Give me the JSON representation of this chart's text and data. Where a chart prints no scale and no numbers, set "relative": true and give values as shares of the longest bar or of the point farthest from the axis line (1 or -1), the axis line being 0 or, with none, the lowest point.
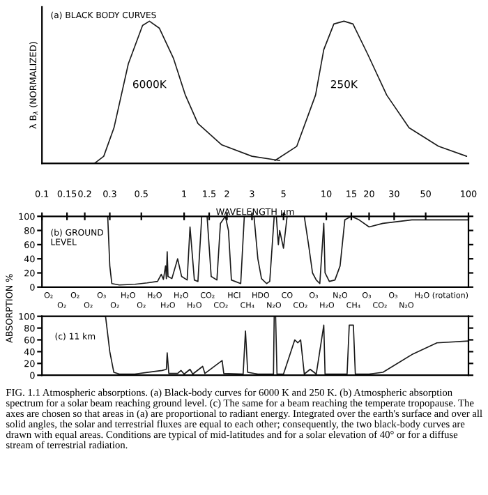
{
  "chart_data": [
    {
      "type": "line",
      "title": "(a) BLACK BODY CURVES",
      "ylabel": "λ B$_{λ}$ (NORMALIZED)",
      "relative": true,
      "log": "x",
      "xlim": [
        0.1,
        100
      ],
      "tick_labels": false,
      "series": [
        {
          "name": "6000K",
          "color": "#1a1a1a",
          "x": [
            0.234,
            0.272,
            0.321,
            0.405,
            0.51,
            0.57,
            0.67,
            0.84,
            1.02,
            1.25,
            1.84,
            3.0,
            4.7
          ],
          "values": [
            0,
            0.05,
            0.25,
            0.7,
            0.97,
            1,
            0.95,
            0.74,
            0.48,
            0.28,
            0.13,
            0.05,
            0.02
          ]
        },
        {
          "name": "250K",
          "color": "#1a1a1a",
          "x": [
            4.35,
            6.2,
            8.4,
            9.6,
            11.3,
            13.3,
            15.4,
            19.5,
            26.6,
            38.2,
            61.5,
            97
          ],
          "values": [
            0.02,
            0.12,
            0.48,
            0.8,
            0.98,
            1,
            0.98,
            0.77,
            0.48,
            0.25,
            0.12,
            0.05
          ]
        }
      ]
    },
    {
      "type": "line",
      "title": "(b) GROUND LEVEL",
      "xlabel": "WAVELENGTH µm",
      "ylabel": "ABSORPTION %",
      "log": "x",
      "xlim": [
        0.1,
        100
      ],
      "ylim": [
        0,
        100
      ],
      "yticks": [
        0,
        20,
        40,
        60,
        80,
        100
      ],
      "xticks": [
        0.1,
        0.15,
        0.2,
        {
          "value": 0.3,
          "label": "0.3"
        },
        0.5,
        1,
        1.5,
        2,
        3,
        5,
        10,
        15,
        20,
        30,
        50,
        100
      ],
      "series": [
        {
          "color": "#1a1a1a",
          "x": [
            0.1,
            0.29,
            0.3,
            0.31,
            0.35,
            0.45,
            0.55,
            0.65,
            0.69,
            0.715,
            0.74,
            0.75,
            0.76,
            0.77,
            0.82,
            0.9,
            0.96,
            1.05,
            1.1,
            1.18,
            1.25,
            1.33,
            1.45,
            1.55,
            1.7,
            1.8,
            1.95,
            2.05,
            2.15,
            2.5,
            2.65,
            2.9,
            3.1,
            3.3,
            3.5,
            3.8,
            4.0,
            4.3,
            4.45,
            4.6,
            4.7,
            5.0,
            5.3,
            6.0,
            7.0,
            7.5,
            8.0,
            8.5,
            9.0,
            9.6,
            9.8,
            10.5,
            11.5,
            12.5,
            13.5,
            15,
            17,
            20,
            25,
            40,
            100
          ],
          "values": [
            100,
            100,
            30,
            5,
            3,
            4,
            6,
            8,
            18,
            11,
            30,
            12,
            50,
            15,
            12,
            40,
            15,
            10,
            85,
            10,
            8,
            100,
            100,
            15,
            10,
            90,
            100,
            80,
            10,
            5,
            100,
            100,
            100,
            40,
            12,
            5,
            8,
            100,
            100,
            60,
            80,
            55,
            100,
            100,
            100,
            60,
            20,
            10,
            5,
            90,
            20,
            8,
            10,
            30,
            95,
            100,
            95,
            85,
            90,
            95,
            95
          ]
        }
      ],
      "annotations": [
        "O₂",
        "O₂",
        "O₂",
        "O₂",
        "O₃",
        "O₂",
        "H₂O",
        "O₂",
        "H₂O",
        "H₂O",
        "H₂O",
        "H₂O",
        "CO₂",
        "CO₂",
        "HCl",
        "CH₄",
        "HDO",
        "N₂O",
        "CO",
        "CO₂",
        "O₃",
        "H₂O",
        "N₂O",
        "CH₄",
        "O₃",
        "CO₂",
        "O₃",
        "N₂O",
        "H₂O (rotation)"
      ]
    },
    {
      "type": "line",
      "title": "(c) 11 km",
      "log": "x",
      "xlim": [
        0.1,
        100
      ],
      "ylim": [
        0,
        100
      ],
      "yticks": [
        0,
        20,
        40,
        60,
        80,
        100
      ],
      "tick_labels": "y",
      "series": [
        {
          "color": "#1a1a1a",
          "x": [
            0.1,
            0.28,
            0.3,
            0.32,
            0.35,
            0.45,
            0.6,
            0.7,
            0.75,
            0.76,
            0.78,
            0.9,
            0.95,
            1.0,
            1.1,
            1.15,
            1.35,
            1.4,
            1.85,
            1.9,
            2.6,
            2.7,
            2.8,
            3.3,
            4.25,
            4.3,
            4.4,
            4.5,
            5,
            6.0,
            6.3,
            6.6,
            7.0,
            7.7,
            8.5,
            9.6,
            9.8,
            12,
            14,
            14.5,
            15.5,
            16,
            20,
            25,
            40,
            60,
            100
          ],
          "values": [
            100,
            100,
            40,
            5,
            2,
            2,
            6,
            8,
            10,
            38,
            3,
            3,
            8,
            2,
            10,
            2,
            15,
            3,
            25,
            3,
            2,
            75,
            5,
            2,
            2,
            100,
            100,
            2,
            2,
            60,
            55,
            60,
            2,
            10,
            2,
            85,
            2,
            2,
            2,
            85,
            85,
            2,
            2,
            5,
            35,
            55,
            58
          ]
        }
      ],
      "annotations": [
        "FIG. 1.1 Atmospheric absorptions. (a) Black-body curves for 6000 K and 250 K. (b) Atmospheric absorption spectrum for a solar beam reaching ground level. (c) The same for a beam reaching the temperate tropopause. The axes are chosen so that areas in (a) are proportional to radiant energy. Integrated over the earth's surface and over all solid angles, the solar and terrestrial fluxes are equal to each other; consequently, the two black-body curves are drawn with equal areas. Conditions are typical of mid-latitudes and for a solar elevation of 40° or for a diffuse stream of terrestrial radiation."
      ]
    }
  ]
}
